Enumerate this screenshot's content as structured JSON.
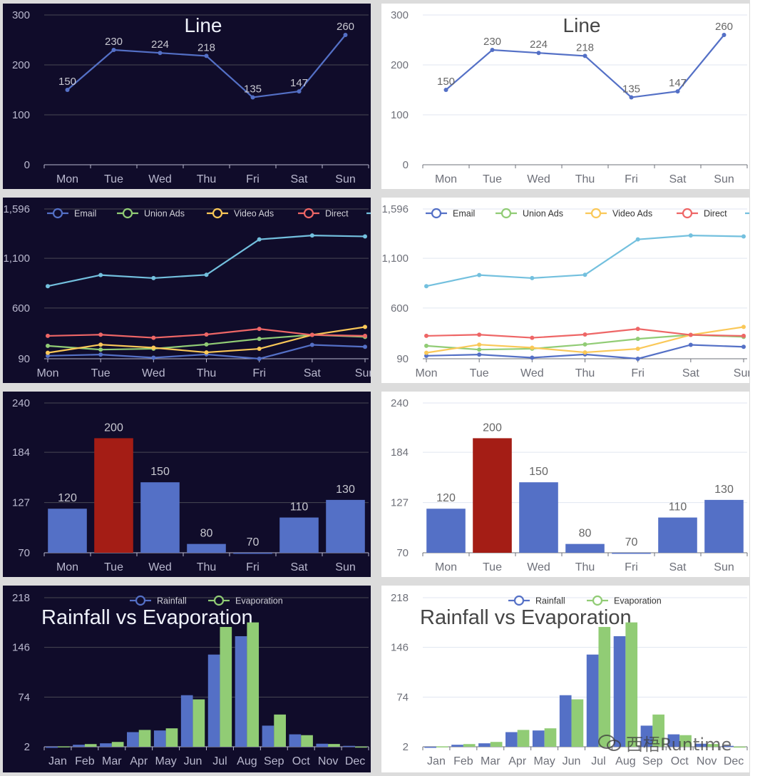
{
  "themes": {
    "dark": {
      "background": "#100c2a",
      "axis_label": "#b9b8ce",
      "axis_line": "#b9b8ce",
      "grid": "#484753",
      "title": "#eef1fa",
      "value_label": "#c8c8d0",
      "legend_text": "#d0d0d8"
    },
    "light": {
      "background": "#ffffff",
      "axis_label": "#6e7079",
      "axis_line": "#6e7079",
      "grid": "#e0e6f1",
      "title": "#464646",
      "value_label": "#666666",
      "legend_text": "#333333"
    }
  },
  "panel_themes": [
    "dark",
    "light"
  ],
  "chart_data": [
    {
      "type": "line",
      "title": "Line",
      "categories": [
        "Mon",
        "Tue",
        "Wed",
        "Thu",
        "Fri",
        "Sat",
        "Sun"
      ],
      "boundary_gap": true,
      "ylim": [
        0,
        300
      ],
      "yticks": [
        "0",
        "100",
        "200",
        "300"
      ],
      "ytick_values": [
        0,
        100,
        200,
        300
      ],
      "grid": true,
      "show_value_labels": true,
      "series": [
        {
          "values": [
            150,
            230,
            224,
            218,
            135,
            147,
            260
          ],
          "color": "#5470c6"
        }
      ]
    },
    {
      "type": "line",
      "title": "",
      "categories": [
        "Mon",
        "Tue",
        "Wed",
        "Thu",
        "Fri",
        "Sat",
        "Sun"
      ],
      "boundary_gap": false,
      "ylim": [
        90,
        1596
      ],
      "yticks": [
        "90",
        "600",
        "1,100",
        "1,596"
      ],
      "ytick_values": [
        90,
        600,
        1100,
        1596
      ],
      "grid": true,
      "legend": "top",
      "series": [
        {
          "name": "Email",
          "values": [
            120,
            132,
            101,
            134,
            90,
            230,
            210
          ],
          "color": "#5470c6"
        },
        {
          "name": "Union Ads",
          "values": [
            220,
            182,
            191,
            234,
            290,
            330,
            310
          ],
          "color": "#91cc75"
        },
        {
          "name": "Video Ads",
          "values": [
            150,
            232,
            201,
            154,
            190,
            330,
            410
          ],
          "color": "#fac858"
        },
        {
          "name": "Direct",
          "values": [
            320,
            332,
            301,
            334,
            390,
            330,
            320
          ],
          "color": "#ee6666"
        },
        {
          "values": [
            820,
            932,
            901,
            934,
            1290,
            1330,
            1320
          ],
          "color": "#73c0de"
        }
      ]
    },
    {
      "type": "bar",
      "title": "",
      "categories": [
        "Mon",
        "Tue",
        "Wed",
        "Thu",
        "Fri",
        "Sat",
        "Sun"
      ],
      "boundary_gap": true,
      "ylim": [
        70,
        240
      ],
      "yticks": [
        "70",
        "127",
        "184",
        "240"
      ],
      "ytick_values": [
        70,
        127,
        184,
        240
      ],
      "grid": true,
      "show_value_labels": true,
      "series": [
        {
          "values": [
            120,
            200,
            150,
            80,
            70,
            110,
            130
          ],
          "color": "#5470c6",
          "highlight": {
            "index": 1,
            "color": "#a41d15"
          }
        }
      ]
    },
    {
      "type": "bar",
      "title": "Rainfall vs Evaporation",
      "categories": [
        "Jan",
        "Feb",
        "Mar",
        "Apr",
        "May",
        "Jun",
        "Jul",
        "Aug",
        "Sep",
        "Oct",
        "Nov",
        "Dec"
      ],
      "boundary_gap": true,
      "ylim": [
        2,
        218
      ],
      "yticks": [
        "2",
        "74",
        "146",
        "218"
      ],
      "ytick_values": [
        2,
        74,
        146,
        218
      ],
      "grid": true,
      "legend": "top",
      "series": [
        {
          "name": "Rainfall",
          "values": [
            2.0,
            4.9,
            7.0,
            23.2,
            25.6,
            76.7,
            135.6,
            162.2,
            32.6,
            20.0,
            6.4,
            3.3
          ],
          "color": "#5470c6"
        },
        {
          "name": "Evaporation",
          "values": [
            2.6,
            5.9,
            9.0,
            26.4,
            28.7,
            70.7,
            175.6,
            182.2,
            48.7,
            18.8,
            6.0,
            2.3
          ],
          "color": "#91cc75"
        }
      ]
    }
  ],
  "watermark": {
    "text": "西梧Runtime",
    "icon": "wechat-icon"
  }
}
